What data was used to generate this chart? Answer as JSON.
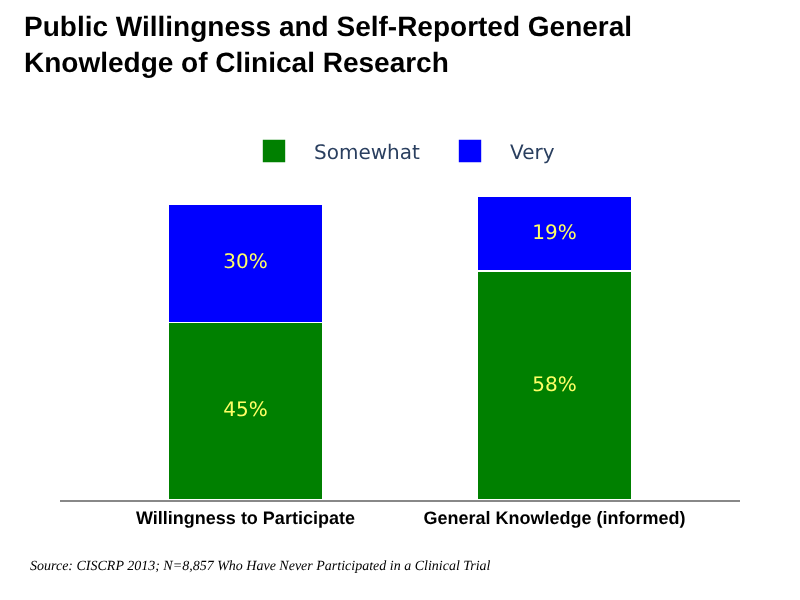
{
  "chart_data": {
    "type": "bar",
    "stacked": true,
    "title": "Public Willingness and Self-Reported General Knowledge of Clinical Research",
    "categories": [
      "Willingness to Participate",
      "General Knowledge (informed)"
    ],
    "series": [
      {
        "name": "Somewhat",
        "color": "#008000",
        "values": [
          45,
          58
        ],
        "value_labels": [
          "45%",
          "58%"
        ]
      },
      {
        "name": "Very",
        "color": "#0000ff",
        "values": [
          30,
          19
        ],
        "value_labels": [
          "30%",
          "19%"
        ]
      }
    ],
    "legend": "top",
    "annotations": [
      "Source: CISCRP 2013; N=8,857 Who Have Never Participated in a Clinical Trial"
    ]
  }
}
